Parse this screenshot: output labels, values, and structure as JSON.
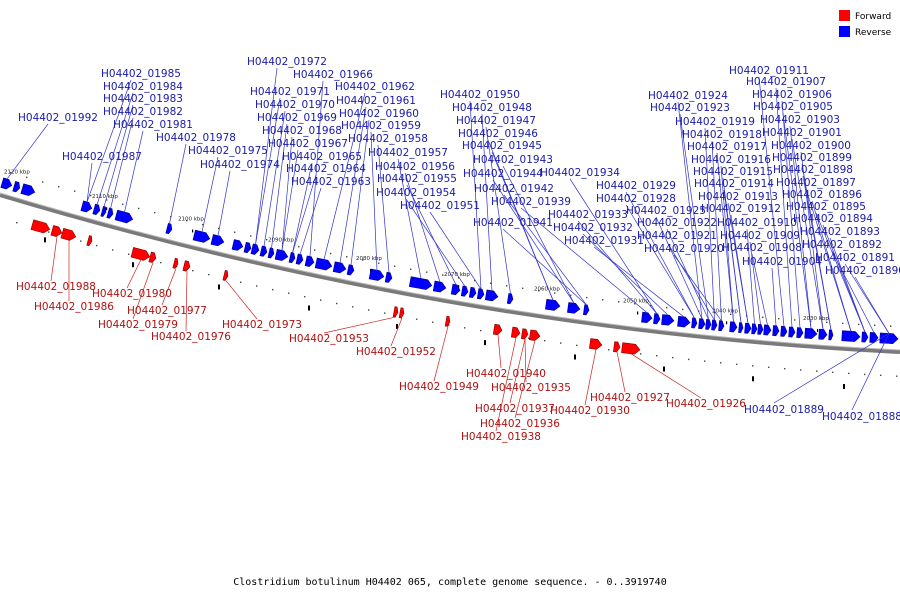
{
  "legend": {
    "forward": {
      "label": "Forward",
      "color": "#ff0000"
    },
    "reverse": {
      "label": "Reverse",
      "color": "#0000ff"
    }
  },
  "footer": "Clostridium botulinum H04402 065, complete genome sequence. - 0..3919740",
  "ticks": [
    "2120 kbp",
    "2110 kbp",
    "2100 kbp",
    "2090 kbp",
    "2080 kbp",
    "2070 kbp",
    "2060 kbp",
    "2050 kbp",
    "2040 kbp",
    "2030 kbp"
  ],
  "reverse_labels": [
    "H04402_01992",
    "H04402_01985",
    "H04402_01984",
    "H04402_01983",
    "H04402_01982",
    "H04402_01981",
    "H04402_01987",
    "H04402_01978",
    "H04402_01975",
    "H04402_01974",
    "H04402_01972",
    "H04402_01966",
    "H04402_01971",
    "H04402_01962",
    "H04402_01970",
    "H04402_01961",
    "H04402_01969",
    "H04402_01960",
    "H04402_01968",
    "H04402_01959",
    "H04402_01967",
    "H04402_01958",
    "H04402_01965",
    "H04402_01957",
    "H04402_01964",
    "H04402_01956",
    "H04402_01963",
    "H04402_01955",
    "H04402_01954",
    "H04402_01951",
    "H04402_01950",
    "H04402_01948",
    "H04402_01947",
    "H04402_01946",
    "H04402_01945",
    "H04402_01943",
    "H04402_01944",
    "H04402_01942",
    "H04402_01939",
    "H04402_01941",
    "H04402_01934",
    "H04402_01933",
    "H04402_01932",
    "H04402_01931",
    "H04402_01929",
    "H04402_01928",
    "H04402_01925",
    "H04402_01922",
    "H04402_01921",
    "H04402_01920",
    "H04402_01924",
    "H04402_01923",
    "H04402_01919",
    "H04402_01918",
    "H04402_01917",
    "H04402_01916",
    "H04402_01915",
    "H04402_01914",
    "H04402_01913",
    "H04402_01912",
    "H04402_01910",
    "H04402_01909",
    "H04402_01908",
    "H04402_01904",
    "H04402_01911",
    "H04402_01907",
    "H04402_01906",
    "H04402_01905",
    "H04402_01903",
    "H04402_01901",
    "H04402_01900",
    "H04402_01899",
    "H04402_01898",
    "H04402_01897",
    "H04402_01896",
    "H04402_01895",
    "H04402_01894",
    "H04402_01893",
    "H04402_01892",
    "H04402_01891",
    "H04402_01890",
    "H04402_01889",
    "H04402_01888"
  ],
  "forward_labels": [
    "H04402_01988",
    "H04402_01986",
    "H04402_01980",
    "H04402_01979",
    "H04402_01977",
    "H04402_01976",
    "H04402_01973",
    "H04402_01953",
    "H04402_01952",
    "H04402_01949",
    "H04402_01940",
    "H04402_01935",
    "H04402_01937",
    "H04402_01936",
    "H04402_01938",
    "H04402_01930",
    "H04402_01927",
    "H04402_01926"
  ]
}
